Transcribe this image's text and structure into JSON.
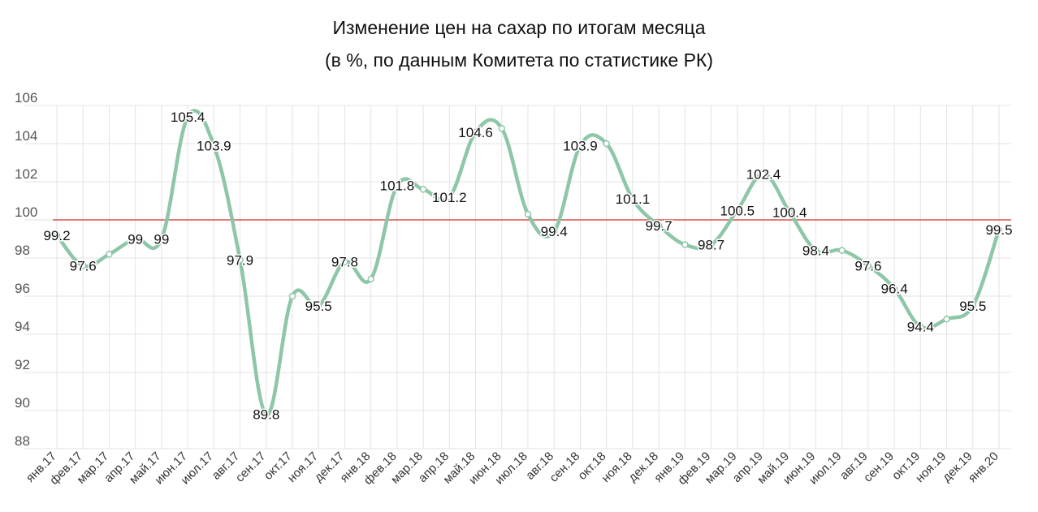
{
  "chart_data": {
    "type": "line",
    "title": "Изменение цен на сахар по итогам месяца",
    "subtitle": "(в %, по данным Комитета по статистике РК)",
    "categories": [
      "янв.17",
      "фев.17",
      "мар.17",
      "апр.17",
      "май.17",
      "июн.17",
      "июл.17",
      "авг.17",
      "сен.17",
      "окт.17",
      "ноя.17",
      "дек.17",
      "янв.18",
      "фев.18",
      "мар.18",
      "апр.18",
      "май.18",
      "июн.18",
      "июл.18",
      "авг.18",
      "сен.18",
      "окт.18",
      "ноя.18",
      "дек.18",
      "янв.19",
      "фев.19",
      "мар.19",
      "апр.19",
      "май.19",
      "июн.19",
      "июл.19",
      "авг.19",
      "сен.19",
      "окт.19",
      "ноя.19",
      "дек.19",
      "янв.20"
    ],
    "series": [
      {
        "values": [
          99.2,
          97.6,
          98.2,
          99,
          99,
          105.4,
          103.9,
          97.9,
          89.8,
          96.0,
          95.5,
          97.8,
          96.9,
          101.8,
          101.6,
          101.2,
          104.6,
          104.8,
          100.3,
          99.4,
          103.9,
          104.0,
          101.1,
          99.7,
          98.7,
          98.7,
          100.5,
          102.4,
          100.4,
          98.4,
          98.4,
          97.6,
          96.4,
          94.4,
          94.8,
          95.5,
          99.5
        ],
        "labels": [
          "99.2",
          "97.6",
          "",
          "99",
          "99",
          "105.4",
          "103.9",
          "97.9",
          "89.8",
          "",
          "95.5",
          "97.8",
          "",
          "101.8",
          "",
          "101.2",
          "104.6",
          "",
          "",
          "99.4",
          "103.9",
          "",
          "101.1",
          "99.7",
          "",
          "98.7",
          "100.5",
          "102.4",
          "100.4",
          "98.4",
          "",
          "97.6",
          "96.4",
          "94.4",
          "",
          "95.5",
          "99.5"
        ],
        "color": "#8ec6a8"
      }
    ],
    "reference_line": {
      "value": 100,
      "color": "#d9534f"
    },
    "ylim": [
      88,
      106
    ],
    "yticks": [
      "88",
      "90",
      "92",
      "94",
      "96",
      "98",
      "100",
      "102",
      "104",
      "106"
    ],
    "grid": true,
    "xlabel": "",
    "ylabel": ""
  }
}
